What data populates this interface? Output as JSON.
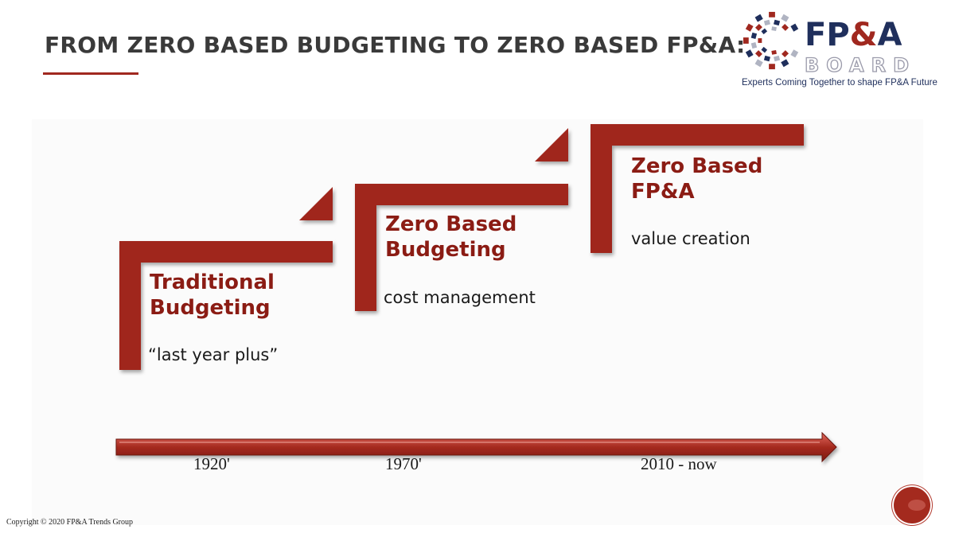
{
  "header": {
    "title": "FROM ZERO BASED BUDGETING TO ZERO BASED FP&A:"
  },
  "logo": {
    "word_fp": "FP",
    "word_amp": "&",
    "word_a": "A",
    "word_board": "BOARD",
    "tagline": "Experts Coming Together to shape FP&A Future"
  },
  "steps": [
    {
      "title": "Traditional\nBudgeting",
      "description": "“last year plus”"
    },
    {
      "title": "Zero Based\nBudgeting",
      "description": "cost management"
    },
    {
      "title": "Zero Based\nFP&A",
      "description": "value creation"
    }
  ],
  "timeline": {
    "labels": [
      "1920'",
      "1970'",
      "2010 - now"
    ]
  },
  "footer": {
    "copyright": "Copyright © 2020 FP&A Trends Group"
  },
  "colors": {
    "accent": "#a0281f",
    "title_text": "#3a3a3a",
    "step_title": "#8b1c14",
    "logo_navy": "#1f2f5c"
  }
}
